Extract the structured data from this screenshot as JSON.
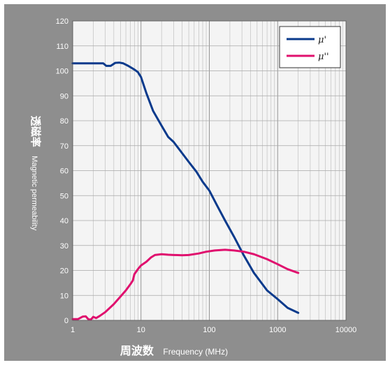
{
  "chart_data": {
    "type": "line",
    "x_scale": "log",
    "xlim": [
      1,
      10000
    ],
    "ylim": [
      0,
      120
    ],
    "x_ticks": [
      "1",
      "10",
      "100",
      "1000",
      "10000"
    ],
    "y_ticks": [
      "0",
      "10",
      "20",
      "30",
      "40",
      "50",
      "60",
      "70",
      "80",
      "90",
      "100",
      "110",
      "120"
    ],
    "xlabel_cn": "周波数",
    "xlabel_en": "Frequency (MHz)",
    "ylabel_cn": "透磁率",
    "ylabel_en": "Magnetic permeability",
    "grid": true,
    "legend_position": "top-right",
    "series": [
      {
        "name": "μ'",
        "color": "#0a3a8c",
        "points": [
          [
            1,
            103
          ],
          [
            2,
            103
          ],
          [
            2.8,
            103
          ],
          [
            3.1,
            102
          ],
          [
            3.6,
            102
          ],
          [
            4.2,
            103.2
          ],
          [
            4.8,
            103.3
          ],
          [
            5.5,
            103
          ],
          [
            6.5,
            102
          ],
          [
            8,
            100.5
          ],
          [
            9,
            99.5
          ],
          [
            10,
            97.5
          ],
          [
            12,
            91
          ],
          [
            15,
            84
          ],
          [
            20,
            78
          ],
          [
            25,
            73.5
          ],
          [
            30,
            71.5
          ],
          [
            40,
            67
          ],
          [
            50,
            63.5
          ],
          [
            65,
            59.5
          ],
          [
            80,
            55.5
          ],
          [
            100,
            52
          ],
          [
            130,
            46
          ],
          [
            170,
            40
          ],
          [
            230,
            33.5
          ],
          [
            320,
            26
          ],
          [
            450,
            19
          ],
          [
            700,
            12
          ],
          [
            1000,
            8.5
          ],
          [
            1400,
            5
          ],
          [
            2000,
            3
          ]
        ]
      },
      {
        "name": "μ''",
        "color": "#e0106e",
        "points": [
          [
            1,
            0.5
          ],
          [
            1.2,
            0.5
          ],
          [
            1.4,
            1.5
          ],
          [
            1.55,
            1.6
          ],
          [
            1.7,
            0.4
          ],
          [
            1.85,
            0.3
          ],
          [
            2,
            1.4
          ],
          [
            2.2,
            0.9
          ],
          [
            2.5,
            1.8
          ],
          [
            3,
            3.3
          ],
          [
            4,
            6.5
          ],
          [
            5,
            9.5
          ],
          [
            6,
            12
          ],
          [
            7,
            14.5
          ],
          [
            7.6,
            16
          ],
          [
            8,
            18.5
          ],
          [
            9,
            20.5
          ],
          [
            10,
            22
          ],
          [
            12,
            23.5
          ],
          [
            14,
            25.2
          ],
          [
            16,
            26.2
          ],
          [
            20,
            26.5
          ],
          [
            25,
            26.3
          ],
          [
            30,
            26.2
          ],
          [
            40,
            26.1
          ],
          [
            50,
            26.2
          ],
          [
            70,
            26.8
          ],
          [
            90,
            27.5
          ],
          [
            120,
            28
          ],
          [
            170,
            28.3
          ],
          [
            230,
            28
          ],
          [
            320,
            27.5
          ],
          [
            450,
            26.5
          ],
          [
            700,
            24.5
          ],
          [
            1000,
            22.5
          ],
          [
            1400,
            20.5
          ],
          [
            2000,
            19
          ]
        ]
      }
    ]
  }
}
